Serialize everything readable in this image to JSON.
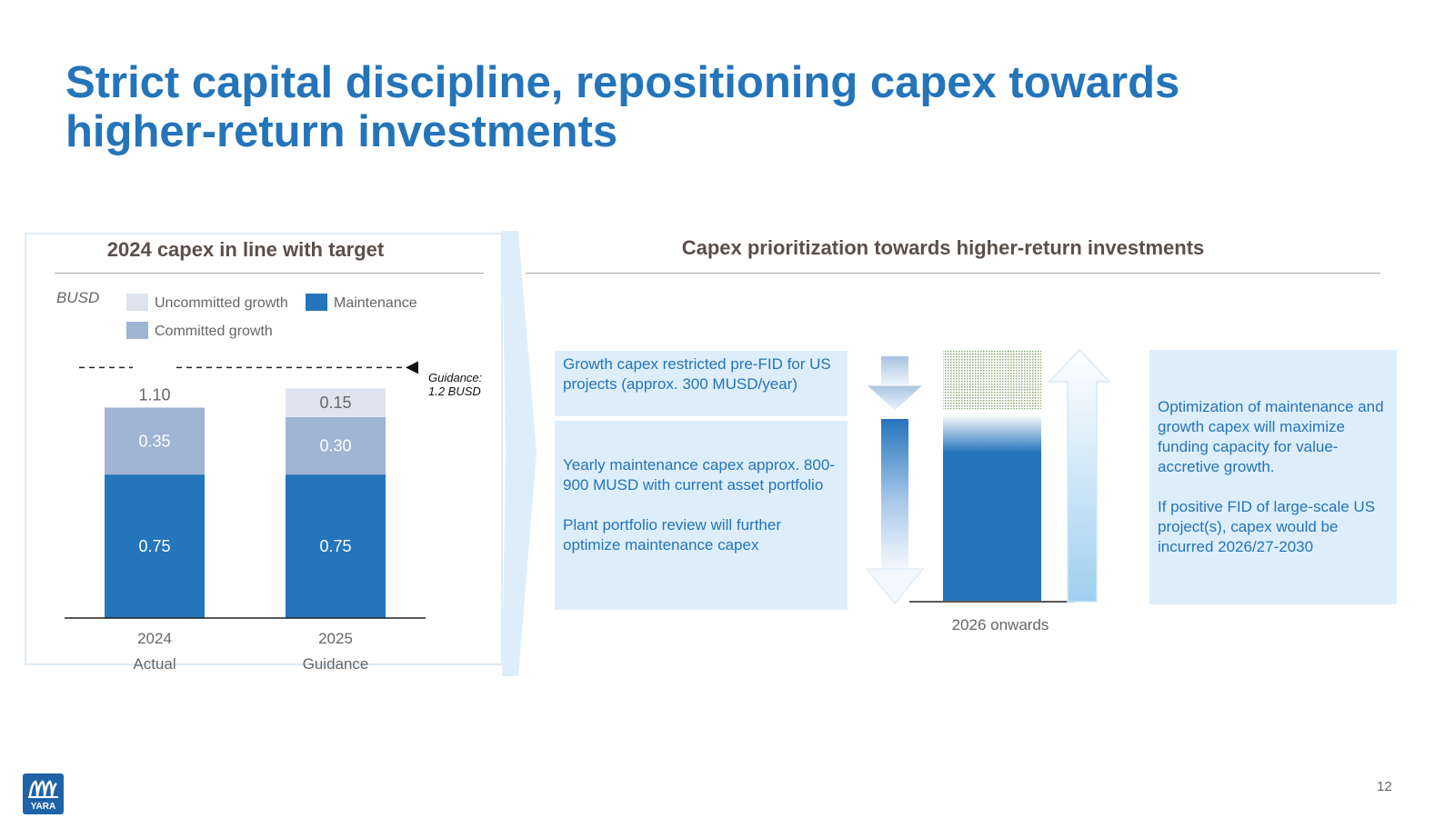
{
  "slide": {
    "title_line1": "Strict capital discipline, repositioning capex towards",
    "title_line2": "higher-return investments",
    "page_number": "12",
    "logo_text": "YARA"
  },
  "left_panel": {
    "heading": "2024 capex in line with target",
    "unit": "BUSD",
    "legend": {
      "uncommitted": "Uncommitted growth",
      "maintenance": "Maintenance",
      "committed": "Committed growth"
    },
    "guidance_line1": "Guidance:",
    "guidance_line2": "1.2 BUSD"
  },
  "chart_data": {
    "type": "bar",
    "stacked": true,
    "categories": [
      "2024",
      "2025"
    ],
    "category_sublabels": [
      "Actual",
      "Guidance"
    ],
    "series": [
      {
        "name": "Maintenance",
        "values": [
          0.75,
          0.75
        ],
        "color": "#2475BB"
      },
      {
        "name": "Committed growth",
        "values": [
          0.35,
          0.3
        ],
        "color": "#A0B4D4"
      },
      {
        "name": "Uncommitted growth",
        "values": [
          0,
          0.15
        ],
        "color": "#DDE3EF"
      }
    ],
    "totals": [
      "1.10",
      null
    ],
    "data_labels": {
      "Maintenance": [
        "0.75",
        "0.75"
      ],
      "Committed growth": [
        "0.35",
        "0.30"
      ],
      "Uncommitted growth": [
        null,
        "0.15"
      ]
    },
    "reference_line": {
      "value": 1.2,
      "label": "Guidance: 1.2 BUSD",
      "style": "dashed"
    },
    "ylim": [
      0,
      1.25
    ],
    "unit": "BUSD",
    "grid": false,
    "legend_position": "top"
  },
  "right_panel": {
    "heading": "Capex prioritization towards higher-return investments",
    "box_growth": "Growth capex restricted pre-FID for US projects (approx. 300 MUSD/year)",
    "box_maint_p1": "Yearly maintenance capex approx. 800-900 MUSD with current asset portfolio",
    "box_maint_p2": "Plant portfolio review will further optimize maintenance capex",
    "box_opt_p1": "Optimization of maintenance and growth capex will maximize funding capacity for value-accretive growth.",
    "box_opt_p2": "If positive FID of large-scale US project(s), capex would be incurred 2026/27-2030",
    "axis_label": "2026 onwards"
  },
  "colors": {
    "title": "#2474BA",
    "maintenance": "#2475BB",
    "committed": "#A0B4D4",
    "uncommitted": "#DDE3EF",
    "box_bg": "#DDEEFA",
    "heading": "#5a4f4a"
  },
  "icons": [
    "down-arrow-icon",
    "up-arrow-icon",
    "chevron-divider-icon",
    "yara-logo-icon"
  ]
}
